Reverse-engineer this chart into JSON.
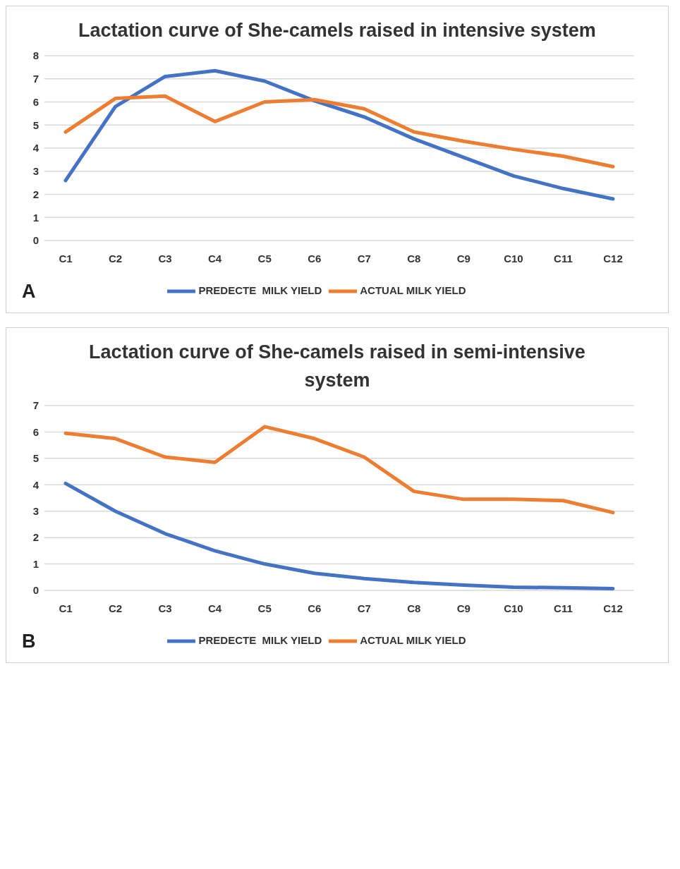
{
  "chart_data": [
    {
      "type": "line",
      "title": "Lactation curve of She-camels raised in intensive system",
      "categories": [
        "C1",
        "C2",
        "C3",
        "C4",
        "C5",
        "C6",
        "C7",
        "C8",
        "C9",
        "C10",
        "C11",
        "C12"
      ],
      "series": [
        {
          "name": "PREDECTE  MILK YIELD",
          "color": "#4472c4",
          "values": [
            2.6,
            5.8,
            7.1,
            7.35,
            6.9,
            6.05,
            5.35,
            4.4,
            3.6,
            2.8,
            2.25,
            1.8
          ]
        },
        {
          "name": "ACTUAL MILK YIELD",
          "color": "#ed7d31",
          "values": [
            4.7,
            6.15,
            6.25,
            5.15,
            6.0,
            6.1,
            5.7,
            4.7,
            4.3,
            3.95,
            3.65,
            3.2
          ]
        }
      ],
      "ylim": [
        0,
        8
      ],
      "yticks": [
        0,
        1,
        2,
        3,
        4,
        5,
        6,
        7,
        8
      ],
      "grid": "y",
      "legend": "bottom",
      "marker": "none",
      "annotations": [
        "A"
      ]
    },
    {
      "type": "line",
      "title": "Lactation curve of She-camels raised in semi-intensive system",
      "categories": [
        "C1",
        "C2",
        "C3",
        "C4",
        "C5",
        "C6",
        "C7",
        "C8",
        "C9",
        "C10",
        "C11",
        "C12"
      ],
      "series": [
        {
          "name": "PREDECTE  MILK YIELD",
          "color": "#4472c4",
          "values": [
            4.05,
            3.0,
            2.15,
            1.5,
            1.0,
            0.65,
            0.45,
            0.3,
            0.2,
            0.12,
            0.1,
            0.07
          ]
        },
        {
          "name": "ACTUAL MILK YIELD",
          "color": "#ed7d31",
          "values": [
            5.95,
            5.75,
            5.05,
            4.85,
            6.2,
            5.75,
            5.05,
            3.75,
            3.45,
            3.45,
            3.4,
            2.95
          ]
        }
      ],
      "ylim": [
        0,
        7
      ],
      "yticks": [
        0,
        1,
        2,
        3,
        4,
        5,
        6,
        7
      ],
      "grid": "y",
      "legend": "bottom",
      "marker": "none",
      "annotations": [
        "B"
      ]
    }
  ]
}
